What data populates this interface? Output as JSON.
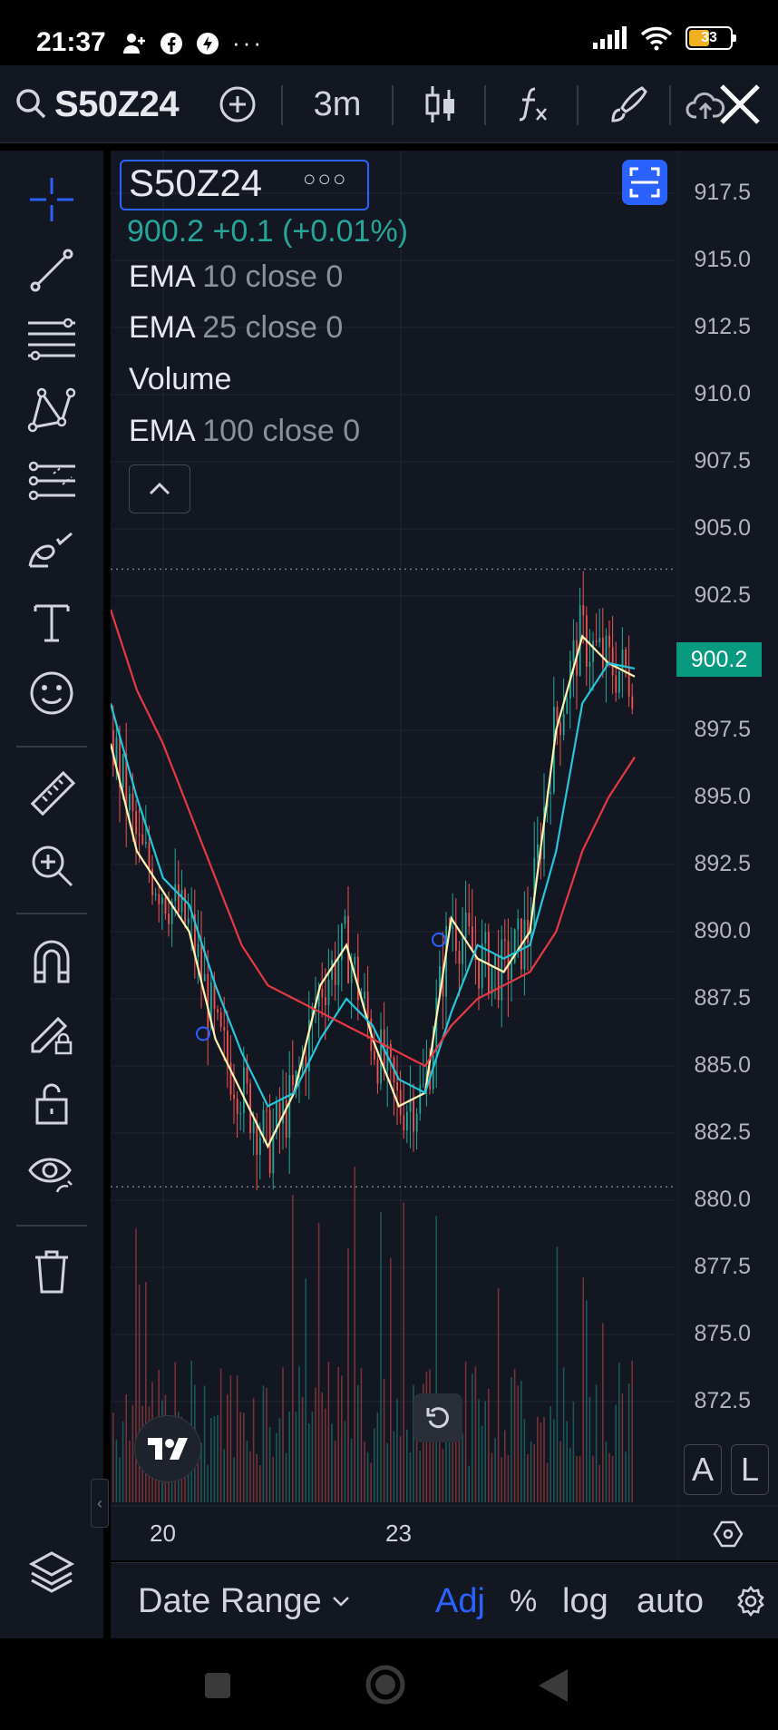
{
  "status_bar": {
    "time": "21:37",
    "battery": "33",
    "icons": [
      "person-plus-icon",
      "facebook-icon",
      "shield-bolt-icon",
      "more-dots-icon",
      "signal-icon",
      "wifi-icon",
      "battery-icon"
    ]
  },
  "toolbar": {
    "symbol": "S50Z24",
    "timeframe": "3m",
    "close_label": "×"
  },
  "legend": {
    "symbol": "S50Z24",
    "price_change": "900.2 +0.1 (+0.01%)",
    "indicators": [
      {
        "name": "EMA",
        "params": "10 close 0"
      },
      {
        "name": "EMA",
        "params": "25 close 0"
      },
      {
        "name": "Volume",
        "params": ""
      },
      {
        "name": "EMA",
        "params": "100 close 0"
      }
    ]
  },
  "price_axis": {
    "labels": [
      "917.5",
      "915.0",
      "912.5",
      "910.0",
      "907.5",
      "905.0",
      "902.5",
      "897.5",
      "895.0",
      "892.5",
      "890.0",
      "887.5",
      "885.0",
      "882.5",
      "880.0",
      "877.5",
      "875.0",
      "872.5"
    ],
    "current_price": "900.2"
  },
  "time_axis": {
    "labels": [
      "20",
      "23"
    ]
  },
  "scale_buttons": {
    "auto_label": "A",
    "log_label": "L"
  },
  "bottom_bar": {
    "date_range": "Date Range",
    "adj": "Adj",
    "percent": "%",
    "log": "log",
    "auto": "auto"
  },
  "colors": {
    "background": "#131722",
    "up": "#26a69a",
    "down": "#ef5350",
    "ema10": "#fff3b0",
    "ema25": "#26c6da",
    "ema100": "#e53945",
    "accent": "#2962ff"
  },
  "chart_data": {
    "type": "line",
    "title": "S50Z24",
    "xlabel": "",
    "ylabel": "",
    "x_ticks": [
      "20",
      "23"
    ],
    "ylim": [
      870.0,
      919.0
    ],
    "series": [
      {
        "name": "EMA 10 close 0",
        "values": [
          897,
          893,
          891.5,
          890,
          886,
          884,
          882,
          884,
          888,
          889.5,
          886,
          883.5,
          884,
          890.5,
          889,
          888.5,
          890,
          897.5,
          901,
          900,
          899.5
        ]
      },
      {
        "name": "EMA 25 close 0",
        "values": [
          898.5,
          895,
          892,
          891,
          888,
          885.5,
          883.5,
          884,
          886,
          887.5,
          886.5,
          884.5,
          884,
          887,
          889.5,
          889,
          889.5,
          893,
          898.5,
          900,
          899.8
        ]
      },
      {
        "name": "EMA 100 close 0",
        "values": [
          902,
          899,
          897,
          894.5,
          892,
          889.5,
          888,
          887.5,
          887,
          886.5,
          886,
          885.5,
          885,
          886.5,
          887.5,
          888,
          888.5,
          890,
          893,
          895,
          896.5
        ]
      }
    ],
    "high": 903.5,
    "low": 880.5
  }
}
